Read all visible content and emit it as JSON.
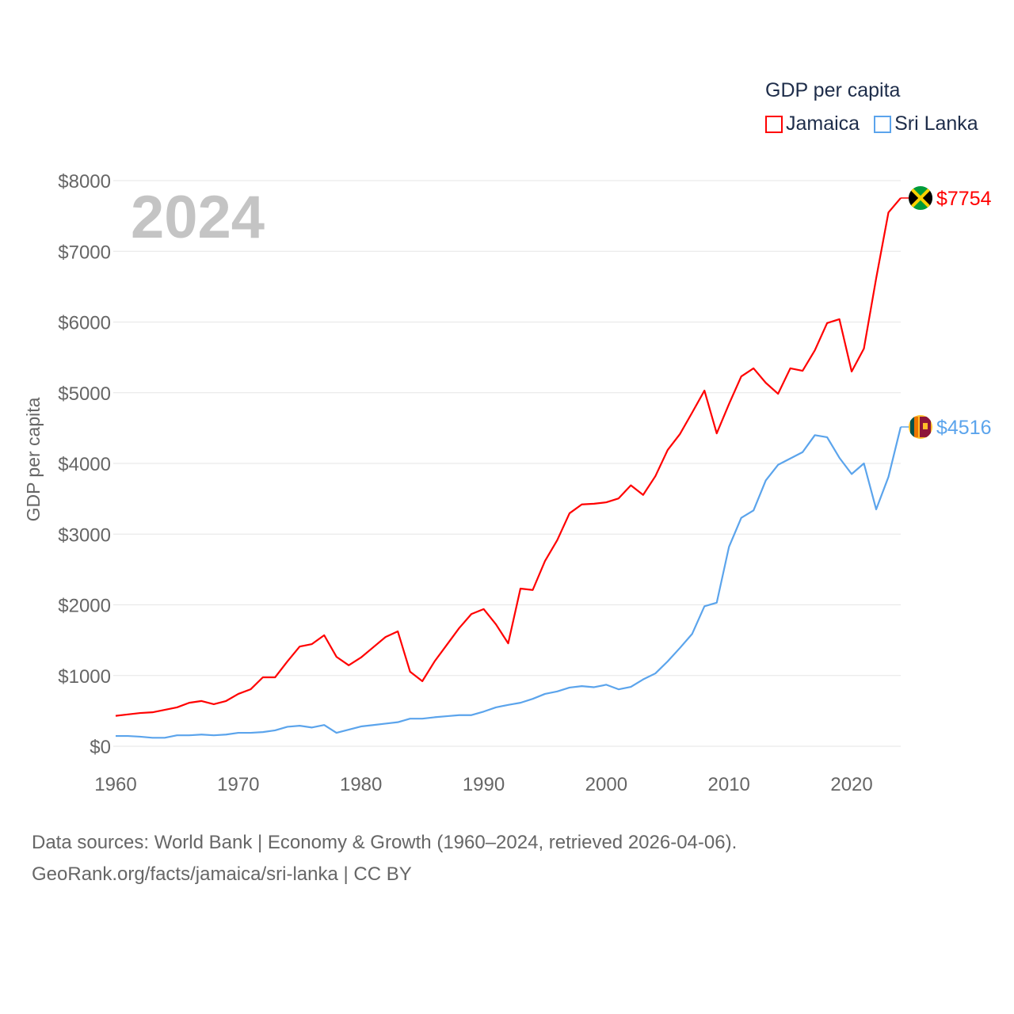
{
  "chart_data": {
    "type": "line",
    "title": "GDP per capita",
    "year_label": "2024",
    "xlabel": "",
    "ylabel": "GDP per capita",
    "xlim": [
      1960,
      2024
    ],
    "ylim": [
      0,
      8000
    ],
    "grid": true,
    "legend_placement": "top-right",
    "x_ticks": [
      1960,
      1970,
      1980,
      1990,
      2000,
      2010,
      2020
    ],
    "x_tick_labels": [
      "1960",
      "1970",
      "1980",
      "1990",
      "2000",
      "2010",
      "2020"
    ],
    "y_ticks": [
      0,
      1000,
      2000,
      3000,
      4000,
      5000,
      6000,
      7000,
      8000
    ],
    "y_tick_labels": [
      "$0",
      "$1000",
      "$2000",
      "$3000",
      "$4000",
      "$5000",
      "$6000",
      "$7000",
      "$8000"
    ],
    "x": [
      1960,
      1961,
      1962,
      1963,
      1964,
      1965,
      1966,
      1967,
      1968,
      1969,
      1970,
      1971,
      1972,
      1973,
      1974,
      1975,
      1976,
      1977,
      1978,
      1979,
      1980,
      1981,
      1982,
      1983,
      1984,
      1985,
      1986,
      1987,
      1988,
      1989,
      1990,
      1991,
      1992,
      1993,
      1994,
      1995,
      1996,
      1997,
      1998,
      1999,
      2000,
      2001,
      2002,
      2003,
      2004,
      2005,
      2006,
      2007,
      2008,
      2009,
      2010,
      2011,
      2012,
      2013,
      2014,
      2015,
      2016,
      2017,
      2018,
      2019,
      2020,
      2021,
      2022,
      2023,
      2024
    ],
    "series": [
      {
        "name": "Jamaica",
        "color": "#ff0000",
        "end_label": "$7754",
        "values": [
          430,
          450,
          470,
          480,
          515,
          550,
          615,
          640,
          595,
          640,
          740,
          805,
          975,
          975,
          1200,
          1410,
          1445,
          1570,
          1265,
          1145,
          1255,
          1400,
          1545,
          1625,
          1055,
          920,
          1200,
          1435,
          1670,
          1870,
          1940,
          1725,
          1455,
          2230,
          2210,
          2620,
          2915,
          3295,
          3420,
          3430,
          3450,
          3505,
          3690,
          3555,
          3820,
          4190,
          4415,
          4720,
          5030,
          4425,
          4840,
          5230,
          5345,
          5140,
          4985,
          5345,
          5310,
          5600,
          5985,
          6040,
          5300,
          5625,
          6620,
          7550,
          7754
        ]
      },
      {
        "name": "Sri Lanka",
        "color": "#5ba4ec",
        "end_label": "$4516",
        "values": [
          145,
          145,
          135,
          120,
          120,
          155,
          155,
          165,
          155,
          165,
          190,
          190,
          200,
          225,
          275,
          290,
          265,
          300,
          190,
          235,
          280,
          300,
          320,
          340,
          390,
          390,
          410,
          425,
          440,
          440,
          490,
          550,
          585,
          615,
          670,
          740,
          775,
          830,
          850,
          835,
          870,
          805,
          840,
          945,
          1030,
          1200,
          1390,
          1590,
          1980,
          2030,
          2820,
          3230,
          3335,
          3760,
          3980,
          4070,
          4160,
          4400,
          4370,
          4080,
          3850,
          4000,
          3350,
          3810,
          4516
        ]
      }
    ]
  },
  "footer": {
    "line1": "Data sources: World Bank | Economy & Growth (1960–2024, retrieved 2026-04-06).",
    "line2": "GeoRank.org/facts/jamaica/sri-lanka | CC BY"
  }
}
